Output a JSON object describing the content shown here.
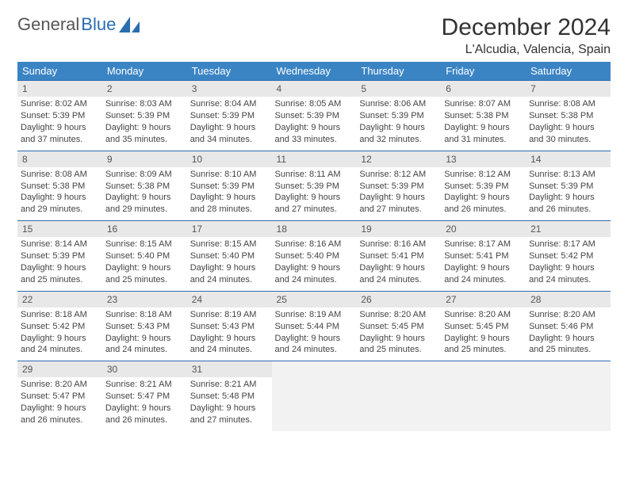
{
  "brand": {
    "part1": "General",
    "part2": "Blue"
  },
  "title": "December 2024",
  "location": "L'Alcudia, Valencia, Spain",
  "colors": {
    "header_bg": "#3b84c4",
    "header_text": "#ffffff",
    "border": "#2b6db0",
    "daynum_bg": "#e8e8e8",
    "text": "#444444",
    "brand_gray": "#555555",
    "brand_blue": "#2b6db0"
  },
  "weekdays": [
    "Sunday",
    "Monday",
    "Tuesday",
    "Wednesday",
    "Thursday",
    "Friday",
    "Saturday"
  ],
  "weeks": [
    [
      {
        "n": "1",
        "sr": "8:02 AM",
        "ss": "5:39 PM",
        "dl": "9 hours and 37 minutes."
      },
      {
        "n": "2",
        "sr": "8:03 AM",
        "ss": "5:39 PM",
        "dl": "9 hours and 35 minutes."
      },
      {
        "n": "3",
        "sr": "8:04 AM",
        "ss": "5:39 PM",
        "dl": "9 hours and 34 minutes."
      },
      {
        "n": "4",
        "sr": "8:05 AM",
        "ss": "5:39 PM",
        "dl": "9 hours and 33 minutes."
      },
      {
        "n": "5",
        "sr": "8:06 AM",
        "ss": "5:39 PM",
        "dl": "9 hours and 32 minutes."
      },
      {
        "n": "6",
        "sr": "8:07 AM",
        "ss": "5:38 PM",
        "dl": "9 hours and 31 minutes."
      },
      {
        "n": "7",
        "sr": "8:08 AM",
        "ss": "5:38 PM",
        "dl": "9 hours and 30 minutes."
      }
    ],
    [
      {
        "n": "8",
        "sr": "8:08 AM",
        "ss": "5:38 PM",
        "dl": "9 hours and 29 minutes."
      },
      {
        "n": "9",
        "sr": "8:09 AM",
        "ss": "5:38 PM",
        "dl": "9 hours and 29 minutes."
      },
      {
        "n": "10",
        "sr": "8:10 AM",
        "ss": "5:39 PM",
        "dl": "9 hours and 28 minutes."
      },
      {
        "n": "11",
        "sr": "8:11 AM",
        "ss": "5:39 PM",
        "dl": "9 hours and 27 minutes."
      },
      {
        "n": "12",
        "sr": "8:12 AM",
        "ss": "5:39 PM",
        "dl": "9 hours and 27 minutes."
      },
      {
        "n": "13",
        "sr": "8:12 AM",
        "ss": "5:39 PM",
        "dl": "9 hours and 26 minutes."
      },
      {
        "n": "14",
        "sr": "8:13 AM",
        "ss": "5:39 PM",
        "dl": "9 hours and 26 minutes."
      }
    ],
    [
      {
        "n": "15",
        "sr": "8:14 AM",
        "ss": "5:39 PM",
        "dl": "9 hours and 25 minutes."
      },
      {
        "n": "16",
        "sr": "8:15 AM",
        "ss": "5:40 PM",
        "dl": "9 hours and 25 minutes."
      },
      {
        "n": "17",
        "sr": "8:15 AM",
        "ss": "5:40 PM",
        "dl": "9 hours and 24 minutes."
      },
      {
        "n": "18",
        "sr": "8:16 AM",
        "ss": "5:40 PM",
        "dl": "9 hours and 24 minutes."
      },
      {
        "n": "19",
        "sr": "8:16 AM",
        "ss": "5:41 PM",
        "dl": "9 hours and 24 minutes."
      },
      {
        "n": "20",
        "sr": "8:17 AM",
        "ss": "5:41 PM",
        "dl": "9 hours and 24 minutes."
      },
      {
        "n": "21",
        "sr": "8:17 AM",
        "ss": "5:42 PM",
        "dl": "9 hours and 24 minutes."
      }
    ],
    [
      {
        "n": "22",
        "sr": "8:18 AM",
        "ss": "5:42 PM",
        "dl": "9 hours and 24 minutes."
      },
      {
        "n": "23",
        "sr": "8:18 AM",
        "ss": "5:43 PM",
        "dl": "9 hours and 24 minutes."
      },
      {
        "n": "24",
        "sr": "8:19 AM",
        "ss": "5:43 PM",
        "dl": "9 hours and 24 minutes."
      },
      {
        "n": "25",
        "sr": "8:19 AM",
        "ss": "5:44 PM",
        "dl": "9 hours and 24 minutes."
      },
      {
        "n": "26",
        "sr": "8:20 AM",
        "ss": "5:45 PM",
        "dl": "9 hours and 25 minutes."
      },
      {
        "n": "27",
        "sr": "8:20 AM",
        "ss": "5:45 PM",
        "dl": "9 hours and 25 minutes."
      },
      {
        "n": "28",
        "sr": "8:20 AM",
        "ss": "5:46 PM",
        "dl": "9 hours and 25 minutes."
      }
    ],
    [
      {
        "n": "29",
        "sr": "8:20 AM",
        "ss": "5:47 PM",
        "dl": "9 hours and 26 minutes."
      },
      {
        "n": "30",
        "sr": "8:21 AM",
        "ss": "5:47 PM",
        "dl": "9 hours and 26 minutes."
      },
      {
        "n": "31",
        "sr": "8:21 AM",
        "ss": "5:48 PM",
        "dl": "9 hours and 27 minutes."
      },
      null,
      null,
      null,
      null
    ]
  ],
  "labels": {
    "sunrise": "Sunrise: ",
    "sunset": "Sunset: ",
    "daylight": "Daylight: "
  }
}
